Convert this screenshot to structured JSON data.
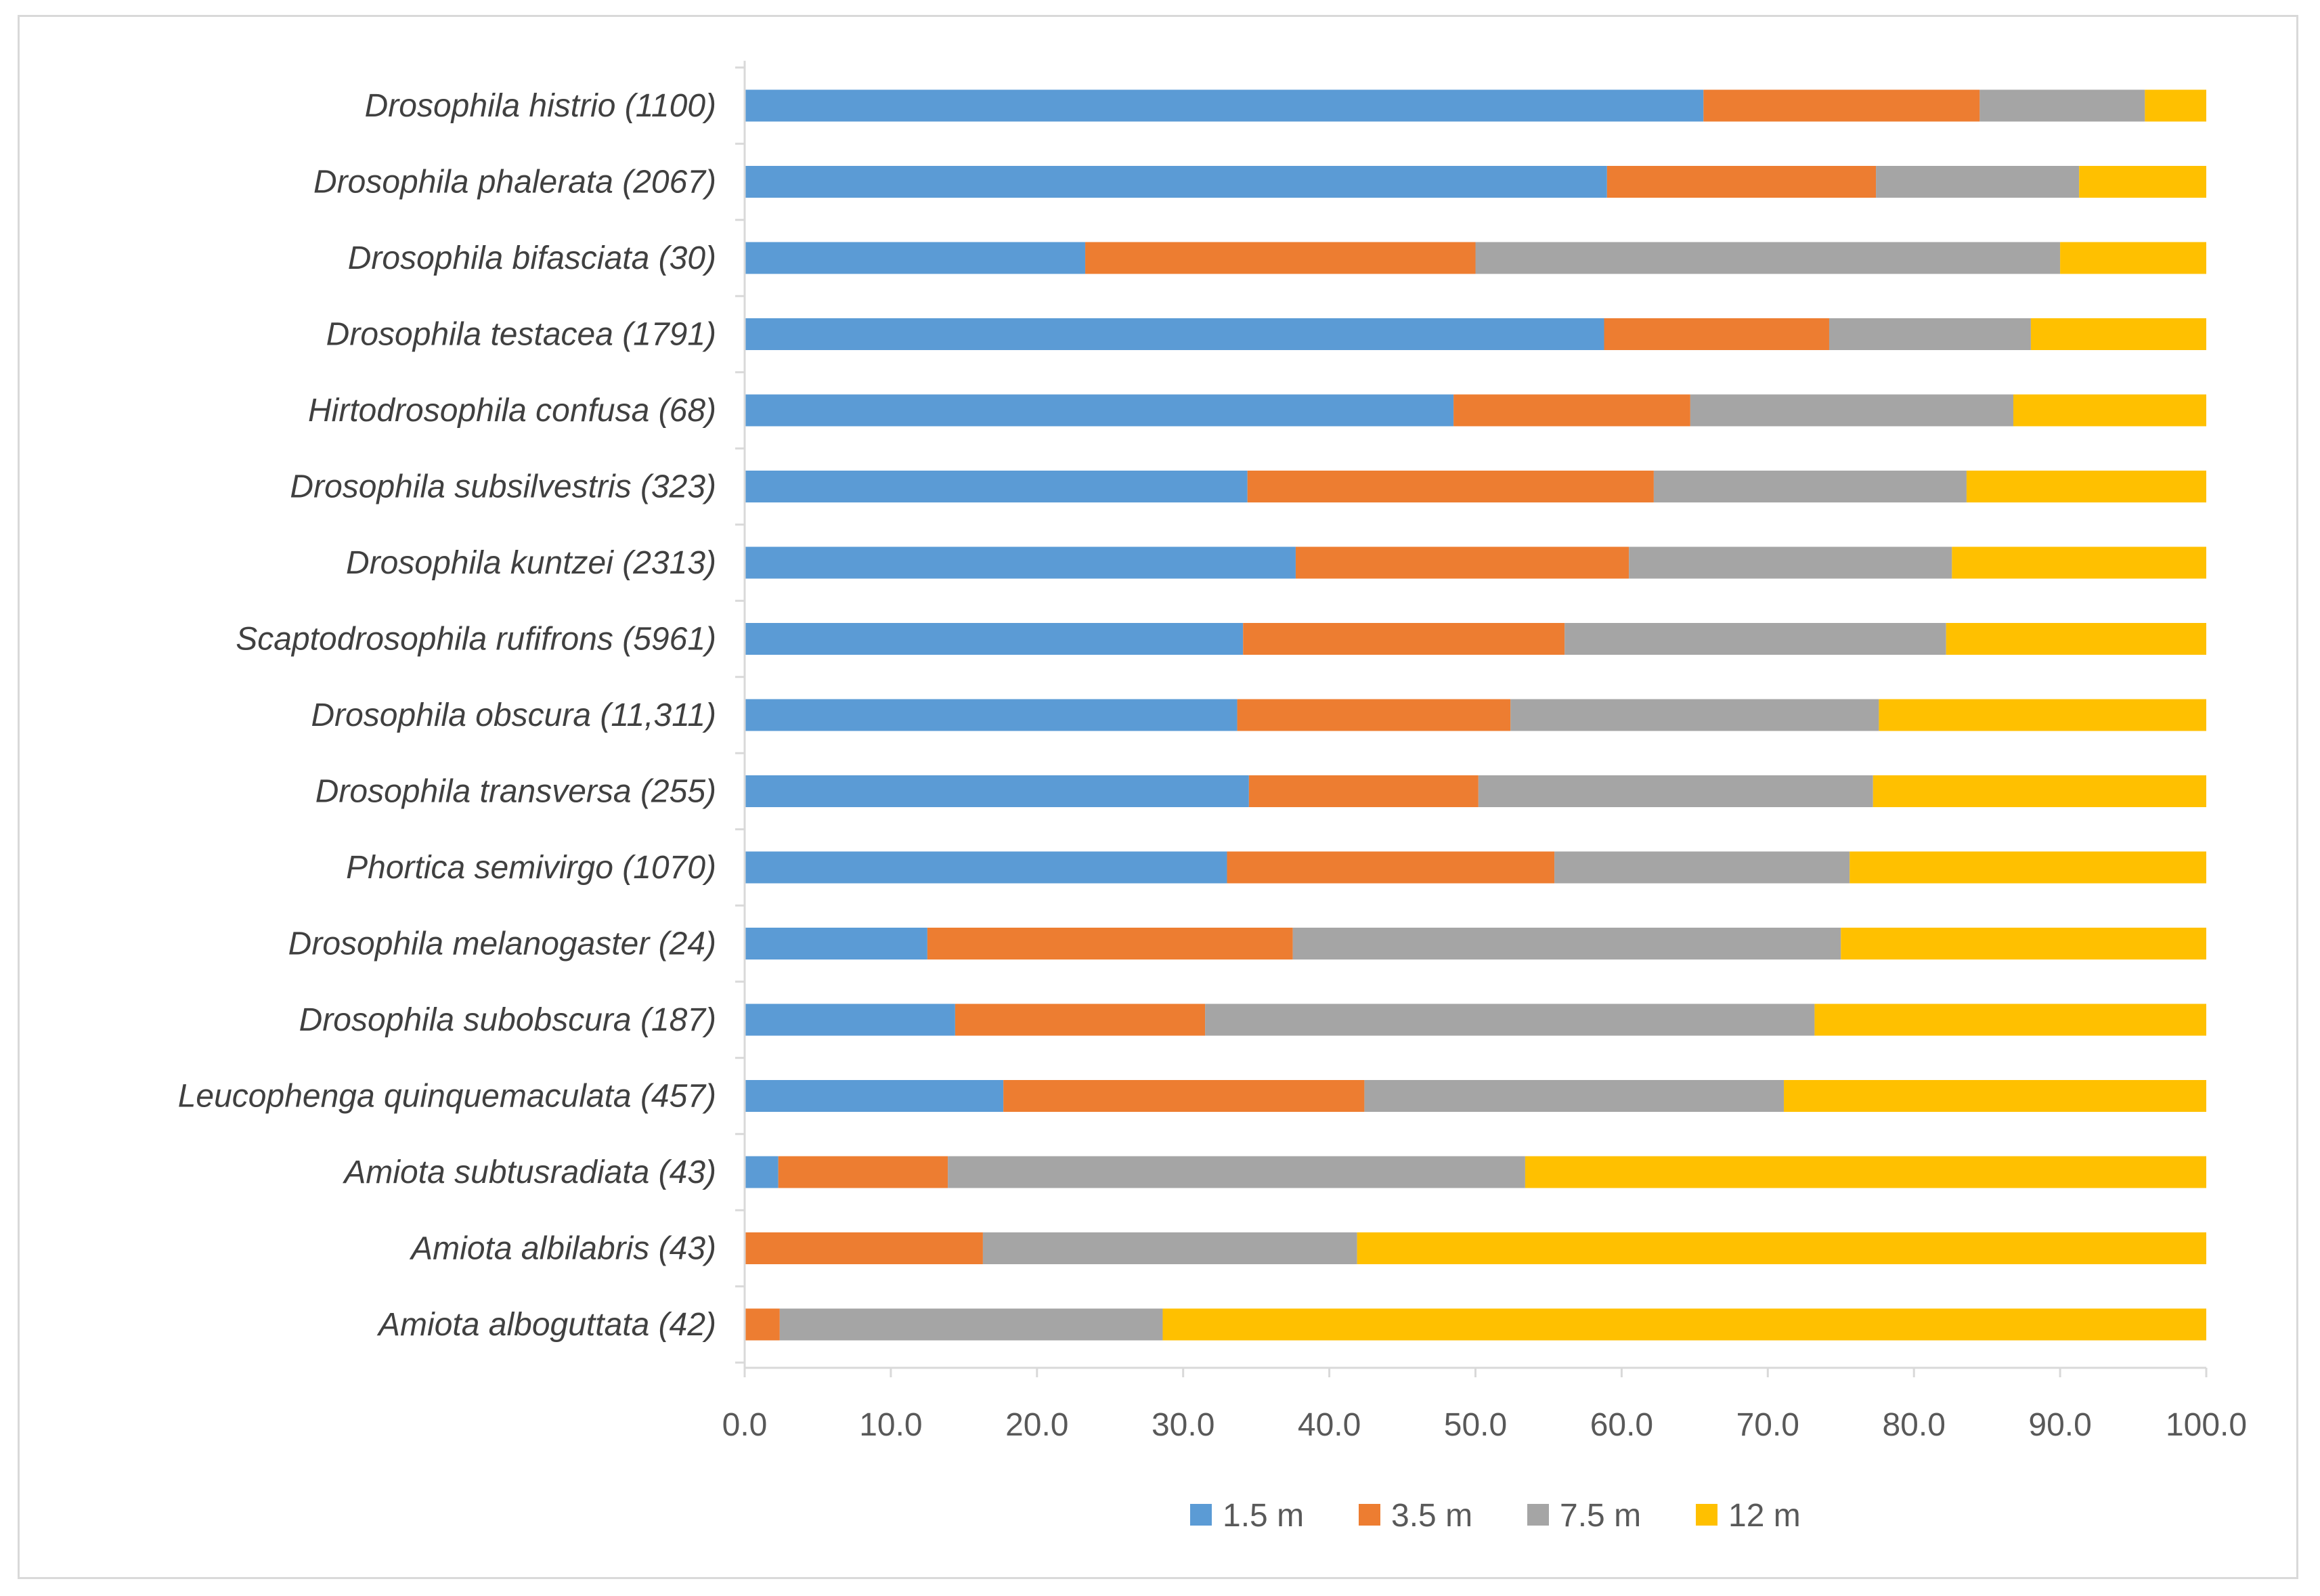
{
  "chart_data": {
    "type": "bar",
    "orientation": "horizontal",
    "stacked": true,
    "title": "",
    "xlabel": "",
    "ylabel": "",
    "xlim": [
      0,
      100
    ],
    "x_ticks": [
      "0.0",
      "10.0",
      "20.0",
      "30.0",
      "40.0",
      "50.0",
      "60.0",
      "70.0",
      "80.0",
      "90.0",
      "100.0"
    ],
    "grid": false,
    "legend_position": "bottom",
    "categories": [
      "Drosophila histrio (1100)",
      "Drosophila phalerata (2067)",
      "Drosophila bifasciata (30)",
      "Drosophila testacea (1791)",
      "Hirtodrosophila confusa (68)",
      "Drosophila subsilvestris (323)",
      "Drosophila kuntzei (2313)",
      "Scaptodrosophila rufifrons (5961)",
      "Drosophila obscura (11,311)",
      "Drosophila transversa (255)",
      "Phortica semivirgo (1070)",
      "Drosophila melanogaster (24)",
      "Drosophila subobscura (187)",
      "Leucophenga quinquemaculata (457)",
      "Amiota subtusradiata (43)",
      "Amiota albilabris (43)",
      "Amiota alboguttata (42)"
    ],
    "series": [
      {
        "name": "1.5 m",
        "color": "#5B9BD5",
        "values": [
          65.6,
          59.0,
          23.3,
          58.8,
          48.5,
          34.4,
          37.7,
          34.1,
          33.7,
          34.5,
          33.0,
          12.5,
          14.4,
          17.7,
          2.3,
          0.0,
          0.0
        ]
      },
      {
        "name": "3.5 m",
        "color": "#ED7D31",
        "values": [
          18.9,
          18.4,
          26.7,
          15.4,
          16.2,
          27.8,
          22.8,
          22.0,
          18.7,
          15.7,
          22.4,
          25.0,
          17.1,
          24.7,
          11.6,
          16.3,
          2.4
        ]
      },
      {
        "name": "7.5 m",
        "color": "#A5A5A5",
        "values": [
          11.3,
          13.9,
          40.0,
          13.8,
          22.1,
          21.4,
          22.1,
          26.1,
          25.2,
          27.0,
          20.2,
          37.5,
          41.7,
          28.7,
          39.5,
          25.6,
          26.2
        ]
      },
      {
        "name": "12 m",
        "color": "#FFC000",
        "values": [
          4.2,
          8.7,
          10.0,
          12.0,
          13.2,
          16.4,
          17.4,
          17.8,
          22.4,
          22.8,
          24.4,
          25.0,
          26.8,
          28.9,
          46.6,
          58.1,
          71.4
        ]
      }
    ],
    "axis_color": "#d9d9d9"
  }
}
